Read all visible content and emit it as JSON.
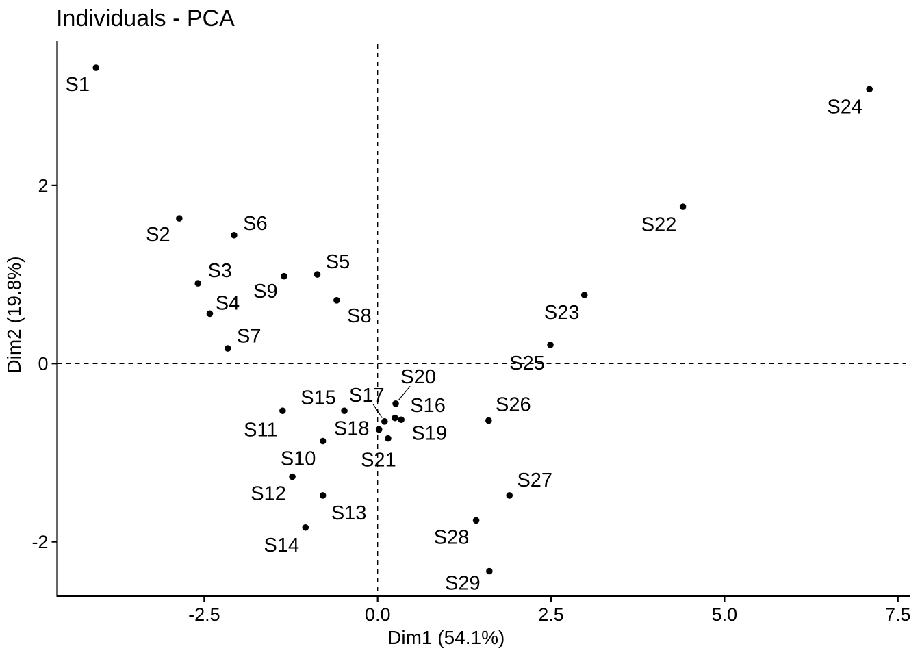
{
  "chart_data": {
    "type": "scatter",
    "title": "Individuals - PCA",
    "xlabel": "Dim1 (54.1%)",
    "ylabel": "Dim2 (19.8%)",
    "x_tick_labels": [
      "-2.5",
      "0.0",
      "2.5",
      "5.0",
      "7.5"
    ],
    "x_tick_values": [
      -2.5,
      0.0,
      2.5,
      5.0,
      7.5
    ],
    "y_tick_labels": [
      "-2",
      "0",
      "2"
    ],
    "y_tick_values": [
      -2,
      0,
      2
    ],
    "x_domain": [
      -4.62,
      7.68
    ],
    "y_domain": [
      -2.61,
      3.62
    ],
    "grid": false,
    "legend": "none",
    "reference_lines": [
      {
        "axis": "y",
        "value": 0,
        "style": "dashed"
      },
      {
        "axis": "x",
        "value": 0,
        "style": "dashed"
      }
    ],
    "marker": {
      "shape": "filled-circle",
      "color": "#000000",
      "radius_px": 4.8
    },
    "points": [
      {
        "name": "S1",
        "x": -4.06,
        "y": 3.32,
        "label_offset": [
          -27,
          24
        ]
      },
      {
        "name": "S2",
        "x": -2.86,
        "y": 1.63,
        "label_offset": [
          -31,
          23
        ]
      },
      {
        "name": "S3",
        "x": -2.59,
        "y": 0.9,
        "label_offset": [
          32,
          -19
        ]
      },
      {
        "name": "S4",
        "x": -2.42,
        "y": 0.56,
        "label_offset": [
          26,
          -16
        ]
      },
      {
        "name": "S5",
        "x": -0.87,
        "y": 1.0,
        "label_offset": [
          30,
          -19
        ]
      },
      {
        "name": "S6",
        "x": -2.07,
        "y": 1.44,
        "label_offset": [
          31,
          -18
        ]
      },
      {
        "name": "S7",
        "x": -2.16,
        "y": 0.17,
        "label_offset": [
          31,
          -19
        ]
      },
      {
        "name": "S8",
        "x": -0.59,
        "y": 0.71,
        "label_offset": [
          33,
          22
        ]
      },
      {
        "name": "S9",
        "x": -1.35,
        "y": 0.98,
        "label_offset": [
          -27,
          21
        ]
      },
      {
        "name": "S10",
        "x": -0.79,
        "y": -0.87,
        "label_offset": [
          -36,
          25
        ]
      },
      {
        "name": "S11",
        "x": -1.37,
        "y": -0.53,
        "label_offset": [
          -32,
          27
        ]
      },
      {
        "name": "S12",
        "x": -1.23,
        "y": -1.27,
        "label_offset": [
          -35,
          24
        ]
      },
      {
        "name": "S13",
        "x": -0.79,
        "y": -1.48,
        "label_offset": [
          38,
          25
        ]
      },
      {
        "name": "S14",
        "x": -1.04,
        "y": -1.84,
        "label_offset": [
          -35,
          25
        ]
      },
      {
        "name": "S15",
        "x": -0.48,
        "y": -0.53,
        "label_offset": [
          -38,
          -20
        ]
      },
      {
        "name": "S16",
        "x": 0.25,
        "y": -0.61,
        "label_offset": [
          48,
          -19
        ]
      },
      {
        "name": "S17",
        "x": 0.1,
        "y": -0.65,
        "label_offset": [
          -26,
          -39
        ],
        "leader": true
      },
      {
        "name": "S18",
        "x": 0.02,
        "y": -0.74,
        "label_offset": [
          -40,
          -2
        ]
      },
      {
        "name": "S19",
        "x": 0.34,
        "y": -0.63,
        "label_offset": [
          41,
          19
        ]
      },
      {
        "name": "S20",
        "x": 0.26,
        "y": -0.45,
        "label_offset": [
          33,
          -40
        ],
        "leader": true
      },
      {
        "name": "S21",
        "x": 0.15,
        "y": -0.84,
        "label_offset": [
          -14,
          31
        ]
      },
      {
        "name": "S22",
        "x": 4.4,
        "y": 1.76,
        "label_offset": [
          -35,
          25
        ]
      },
      {
        "name": "S23",
        "x": 2.98,
        "y": 0.77,
        "label_offset": [
          -33,
          25
        ]
      },
      {
        "name": "S24",
        "x": 7.09,
        "y": 3.08,
        "label_offset": [
          -36,
          25
        ]
      },
      {
        "name": "S25",
        "x": 2.49,
        "y": 0.21,
        "label_offset": [
          -34,
          26
        ]
      },
      {
        "name": "S26",
        "x": 1.6,
        "y": -0.64,
        "label_offset": [
          36,
          -24
        ]
      },
      {
        "name": "S27",
        "x": 1.9,
        "y": -1.48,
        "label_offset": [
          37,
          -23
        ]
      },
      {
        "name": "S28",
        "x": 1.42,
        "y": -1.76,
        "label_offset": [
          -36,
          24
        ]
      },
      {
        "name": "S29",
        "x": 1.61,
        "y": -2.33,
        "label_offset": [
          -39,
          17
        ]
      }
    ],
    "colors": {
      "foreground": "#000000",
      "background": "#FFFFFF"
    }
  }
}
